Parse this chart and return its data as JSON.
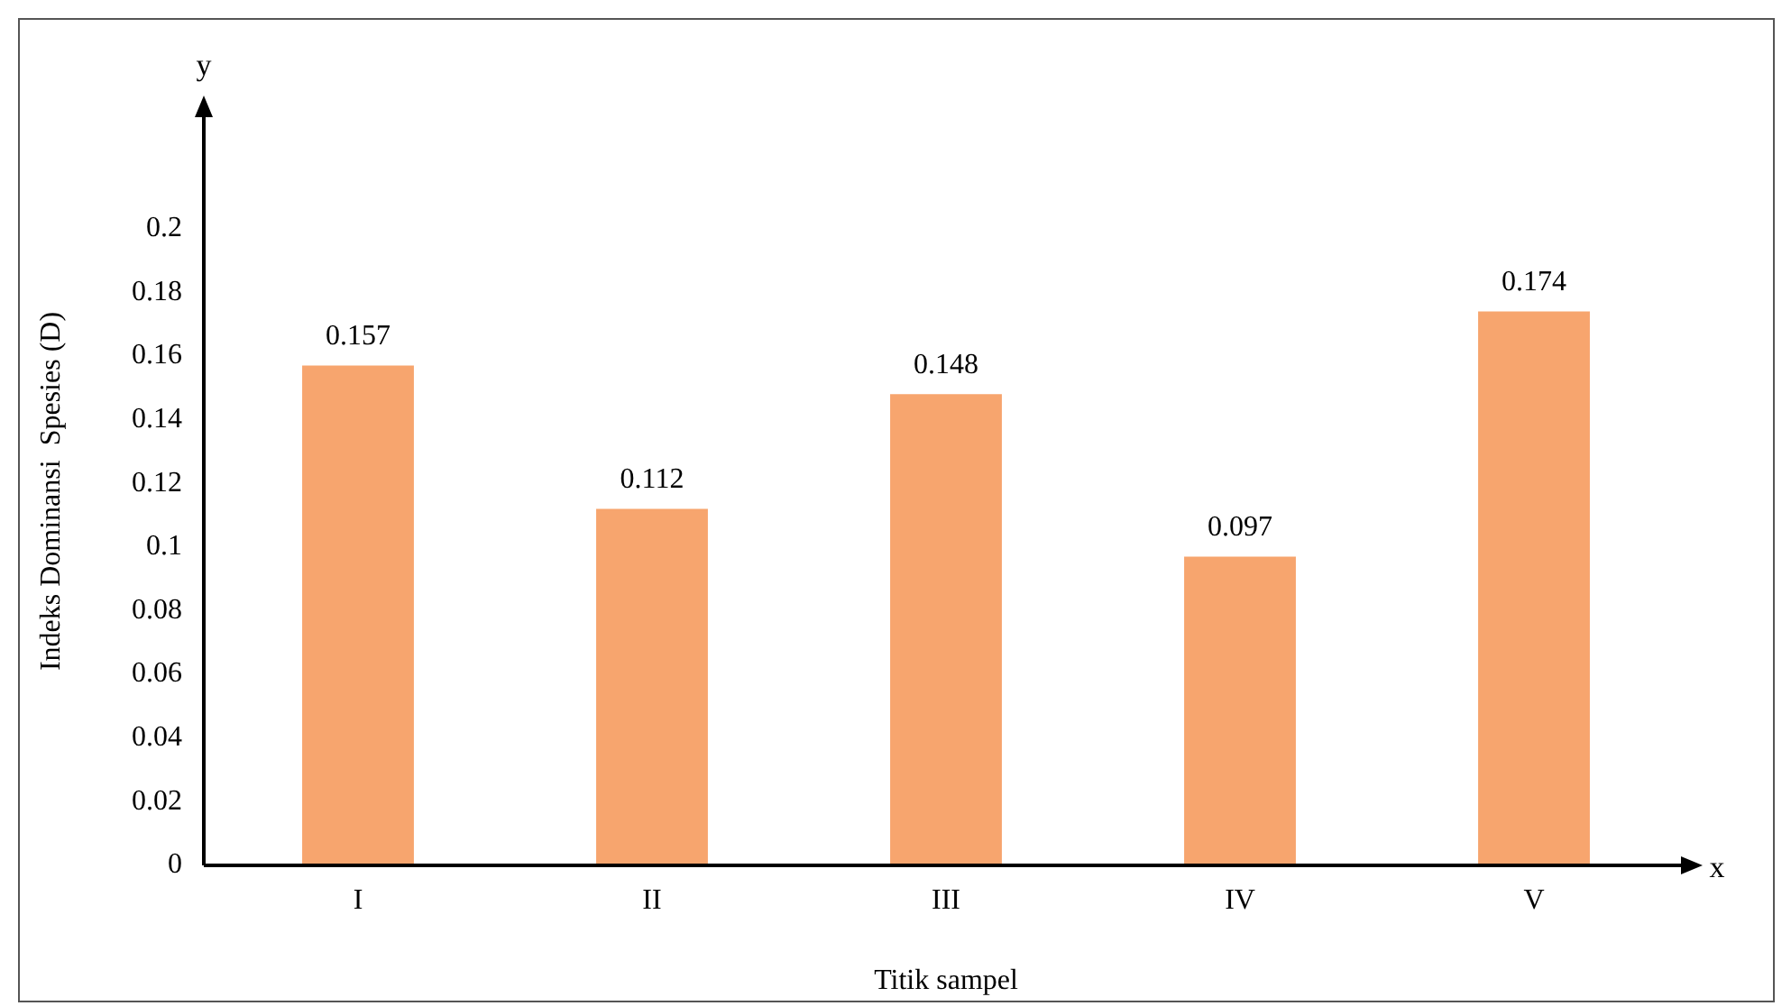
{
  "chart_data": {
    "type": "bar",
    "xlabel": "Titik sampel",
    "ylabel": "Indeks Dominansi  Spesies (D)",
    "categories": [
      "I",
      "II",
      "III",
      "IV",
      "V"
    ],
    "values": [
      0.157,
      0.112,
      0.148,
      0.097,
      0.174
    ],
    "color": "#f7a56e",
    "ylim": [
      0,
      0.235
    ],
    "yticks": [
      0,
      0.02,
      0.04,
      0.06,
      0.08,
      0.1,
      0.12,
      0.14,
      0.16,
      0.18,
      0.2
    ],
    "grid": false,
    "legend": false,
    "data_labels": true,
    "annotations": [
      "y",
      "x"
    ]
  }
}
